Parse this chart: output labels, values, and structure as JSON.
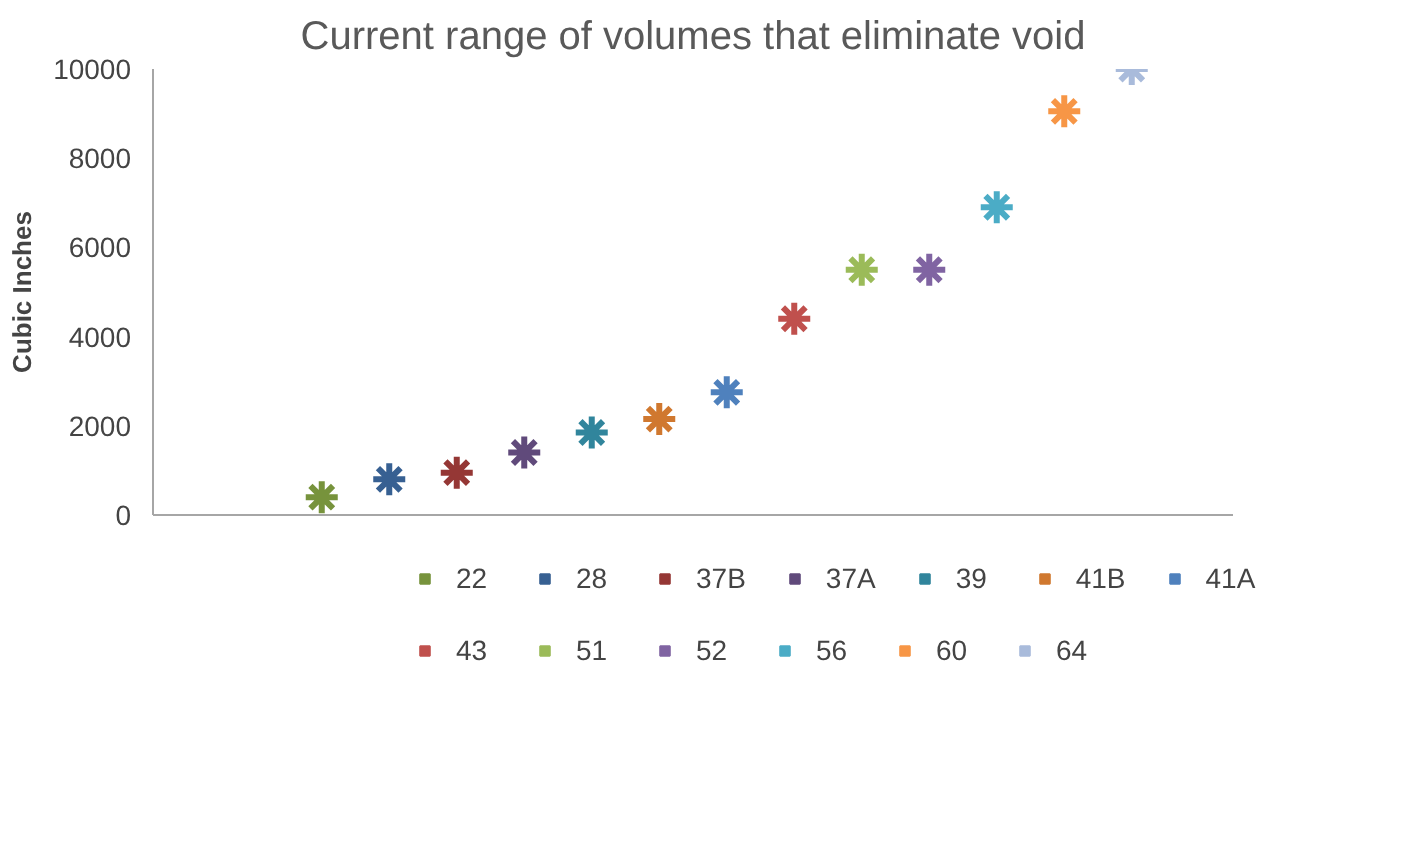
{
  "chart_data": {
    "type": "scatter",
    "title": "Current range of volumes that eliminate void",
    "ylabel": "Cubic Inches",
    "categories": [
      null,
      null,
      null,
      null,
      null,
      null,
      null,
      null,
      null,
      null,
      null,
      null,
      null,
      null,
      null,
      null
    ],
    "ylim": [
      0,
      10000
    ],
    "yticks": [
      0,
      2000,
      4000,
      6000,
      8000,
      10000
    ],
    "grid": false,
    "legend": "bottom",
    "marker": "cross",
    "series": [
      {
        "name": "22",
        "color": "#77933c",
        "values": [
          null,
          null,
          400,
          null,
          null,
          null,
          null,
          null,
          null,
          null,
          null,
          null,
          null,
          null,
          null,
          null
        ]
      },
      {
        "name": "28",
        "color": "#376092",
        "values": [
          null,
          null,
          null,
          800,
          null,
          null,
          null,
          null,
          null,
          null,
          null,
          null,
          null,
          null,
          null,
          null
        ]
      },
      {
        "name": "37B",
        "color": "#953735",
        "values": [
          null,
          null,
          null,
          null,
          950,
          null,
          null,
          null,
          null,
          null,
          null,
          null,
          null,
          null,
          null,
          null
        ]
      },
      {
        "name": "37A",
        "color": "#604a7b",
        "values": [
          null,
          null,
          null,
          null,
          null,
          1400,
          null,
          null,
          null,
          null,
          null,
          null,
          null,
          null,
          null,
          null
        ]
      },
      {
        "name": "39",
        "color": "#31859c",
        "values": [
          null,
          null,
          null,
          null,
          null,
          null,
          1850,
          null,
          null,
          null,
          null,
          null,
          null,
          null,
          null,
          null
        ]
      },
      {
        "name": "41B",
        "color": "#d0782f",
        "values": [
          null,
          null,
          null,
          null,
          null,
          null,
          null,
          2150,
          null,
          null,
          null,
          null,
          null,
          null,
          null,
          null
        ]
      },
      {
        "name": "41A",
        "color": "#4f81bd",
        "values": [
          null,
          null,
          null,
          null,
          null,
          null,
          null,
          null,
          2750,
          null,
          null,
          null,
          null,
          null,
          null,
          null
        ]
      },
      {
        "name": "43",
        "color": "#c0504d",
        "values": [
          null,
          null,
          null,
          null,
          null,
          null,
          null,
          null,
          null,
          4400,
          null,
          null,
          null,
          null,
          null,
          null
        ]
      },
      {
        "name": "51",
        "color": "#9bbb59",
        "values": [
          null,
          null,
          null,
          null,
          null,
          null,
          null,
          null,
          null,
          null,
          5500,
          null,
          null,
          null,
          null,
          null
        ]
      },
      {
        "name": "52",
        "color": "#8064a2",
        "values": [
          null,
          null,
          null,
          null,
          null,
          null,
          null,
          null,
          null,
          null,
          null,
          5500,
          null,
          null,
          null,
          null
        ]
      },
      {
        "name": "56",
        "color": "#4bacc6",
        "values": [
          null,
          null,
          null,
          null,
          null,
          null,
          null,
          null,
          null,
          null,
          null,
          null,
          6900,
          null,
          null,
          null
        ]
      },
      {
        "name": "60",
        "color": "#f79646",
        "values": [
          null,
          null,
          null,
          null,
          null,
          null,
          null,
          null,
          null,
          null,
          null,
          null,
          null,
          9050,
          null,
          null
        ]
      },
      {
        "name": "64",
        "color": "#a9bbdb",
        "values": [
          null,
          null,
          null,
          null,
          null,
          null,
          null,
          null,
          null,
          null,
          null,
          null,
          null,
          null,
          10000,
          null
        ]
      }
    ]
  }
}
